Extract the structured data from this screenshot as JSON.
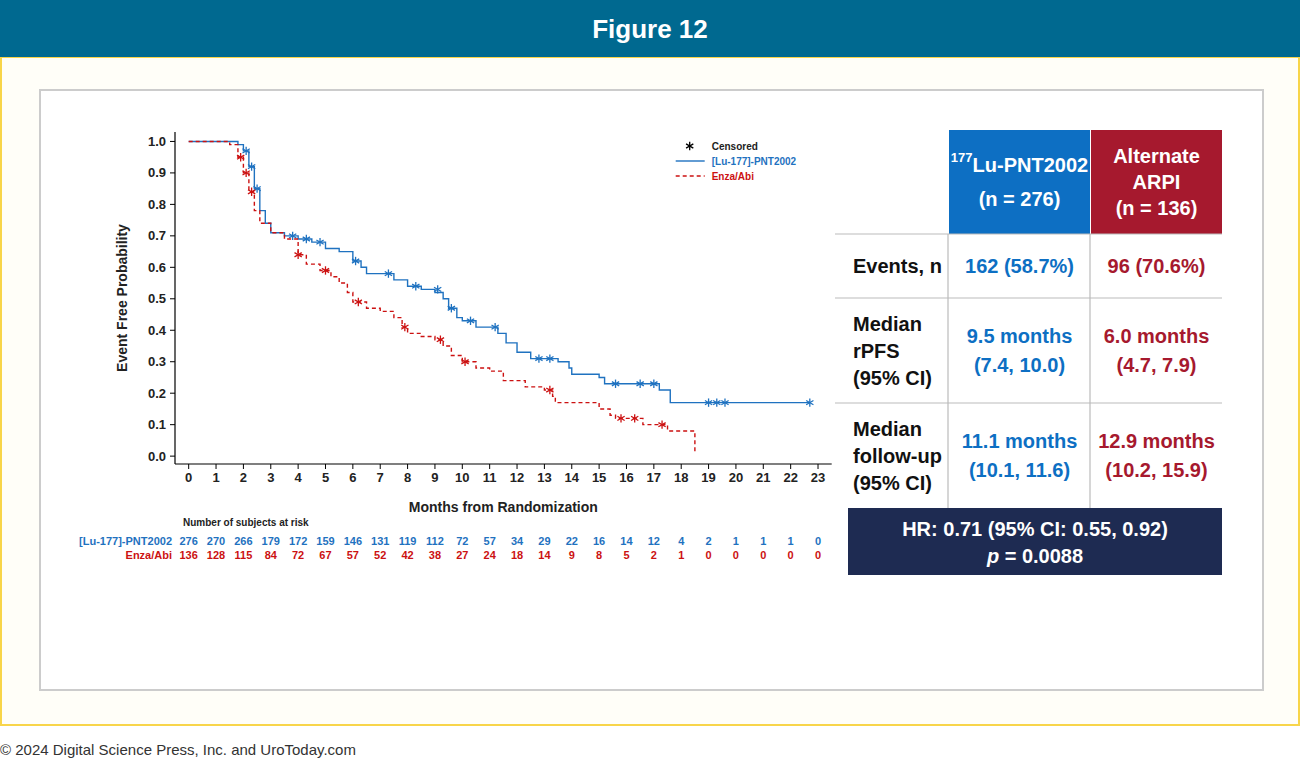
{
  "figure": {
    "title": "Figure 12",
    "copyright": "© 2024 Digital Science Press, Inc. and UroToday.com"
  },
  "chart_data": {
    "type": "step",
    "x_label": "Months from Randomization",
    "y_label": "Event Free Probability",
    "xlim": [
      -0.5,
      23.5
    ],
    "ylim": [
      -0.025,
      1.03
    ],
    "xticks": [
      0,
      1,
      2,
      3,
      4,
      5,
      6,
      7,
      8,
      9,
      10,
      11,
      12,
      13,
      14,
      15,
      16,
      17,
      18,
      19,
      20,
      21,
      22,
      23
    ],
    "yticks": [
      {
        "value": 0,
        "label": "0.0"
      },
      0.1,
      0.2,
      0.3,
      0.4,
      0.5,
      0.6,
      0.7,
      0.8,
      0.9,
      {
        "value": 1,
        "label": "1.0"
      }
    ],
    "grid": false,
    "legend": "upper right",
    "censored_label": "Censored",
    "series": [
      {
        "name": "[Lu-177]-PNT2002",
        "color": "#1f72c0",
        "line_style": "solid",
        "x": [
          0,
          1.5,
          1.8,
          2.0,
          2.2,
          2.4,
          2.6,
          2.8,
          3.0,
          3.5,
          4.0,
          4.5,
          5.0,
          5.5,
          6.0,
          6.3,
          6.5,
          7.5,
          8.0,
          8.5,
          9.0,
          9.3,
          9.5,
          9.8,
          10.0,
          10.5,
          11.3,
          11.6,
          12.0,
          12.5,
          13.5,
          13.9,
          14.0,
          15.0,
          15.2,
          17.2,
          17.6,
          22.7
        ],
        "values": [
          1.0,
          1.0,
          0.99,
          0.97,
          0.92,
          0.85,
          0.78,
          0.74,
          0.71,
          0.7,
          0.69,
          0.68,
          0.66,
          0.65,
          0.62,
          0.6,
          0.58,
          0.56,
          0.54,
          0.53,
          0.52,
          0.5,
          0.47,
          0.44,
          0.43,
          0.41,
          0.39,
          0.36,
          0.33,
          0.31,
          0.3,
          0.28,
          0.26,
          0.25,
          0.23,
          0.21,
          0.17,
          0.17
        ],
        "censored": {
          "marker": "asterisk",
          "x": [
            2.1,
            2.3,
            2.5,
            3.8,
            4.3,
            4.8,
            6.1,
            7.3,
            8.3,
            9.1,
            9.6,
            10.3,
            11.2,
            12.8,
            13.2,
            15.6,
            16.5,
            17.0,
            19.0,
            19.3,
            19.6,
            22.7
          ],
          "values": [
            0.97,
            0.92,
            0.85,
            0.7,
            0.69,
            0.68,
            0.62,
            0.58,
            0.54,
            0.53,
            0.47,
            0.43,
            0.41,
            0.31,
            0.31,
            0.23,
            0.23,
            0.23,
            0.17,
            0.17,
            0.17,
            0.17
          ]
        }
      },
      {
        "name": "Enza/Abi",
        "color": "#cc1111",
        "line_style": "dashed",
        "x": [
          0,
          1.5,
          1.8,
          2.0,
          2.2,
          2.4,
          2.6,
          3.0,
          3.5,
          4.0,
          4.3,
          4.8,
          5.2,
          5.5,
          5.8,
          6.0,
          6.5,
          7.0,
          7.5,
          7.8,
          8.0,
          8.5,
          9.0,
          9.3,
          9.6,
          10.0,
          10.5,
          11.0,
          11.5,
          12.3,
          13.0,
          13.3,
          13.4,
          15.0,
          15.4,
          15.6,
          16.6,
          17.5,
          18.5,
          18.5
        ],
        "values": [
          1.0,
          0.99,
          0.95,
          0.9,
          0.84,
          0.78,
          0.74,
          0.71,
          0.69,
          0.64,
          0.61,
          0.59,
          0.57,
          0.55,
          0.52,
          0.49,
          0.47,
          0.46,
          0.44,
          0.41,
          0.39,
          0.38,
          0.37,
          0.35,
          0.32,
          0.3,
          0.28,
          0.27,
          0.24,
          0.22,
          0.21,
          0.19,
          0.17,
          0.15,
          0.13,
          0.12,
          0.1,
          0.08,
          0.08,
          0.01
        ],
        "censored": {
          "marker": "asterisk",
          "x": [
            1.9,
            2.1,
            2.3,
            4.0,
            5.0,
            6.2,
            7.9,
            9.2,
            10.1,
            13.2,
            15.8,
            16.3,
            17.3
          ],
          "values": [
            0.95,
            0.9,
            0.84,
            0.64,
            0.59,
            0.49,
            0.41,
            0.37,
            0.3,
            0.21,
            0.12,
            0.12,
            0.1
          ]
        }
      }
    ],
    "at_risk": {
      "title": "Number of subjects at risk",
      "rows": [
        {
          "name": "[Lu-177]-PNT2002",
          "color": "#1f72c0",
          "values": [
            276,
            270,
            266,
            179,
            172,
            159,
            146,
            131,
            119,
            112,
            72,
            57,
            34,
            29,
            22,
            16,
            14,
            12,
            4,
            2,
            1,
            1,
            1,
            0
          ]
        },
        {
          "name": "Enza/Abi",
          "color": "#cc1111",
          "values": [
            136,
            128,
            115,
            84,
            72,
            67,
            57,
            52,
            42,
            38,
            27,
            24,
            18,
            14,
            9,
            8,
            5,
            2,
            1,
            0,
            0,
            0,
            0,
            0
          ]
        }
      ]
    }
  },
  "table": {
    "columns": [
      {
        "sup": "177",
        "lines": [
          "Lu-PNT2002"
        ],
        "n": "(n = 276)",
        "color": "#0d6fc3"
      },
      {
        "lines": [
          "Alternate",
          "ARPI"
        ],
        "n": "(n = 136)",
        "color": "#a6192e"
      }
    ],
    "rows": [
      {
        "label": [
          "Events, n"
        ],
        "cells": [
          [
            "162 (58.7%)"
          ],
          [
            "96 (70.6%)"
          ]
        ]
      },
      {
        "label": [
          "Median",
          "rPFS",
          "(95% CI)"
        ],
        "cells": [
          [
            "9.5 months",
            "(7.4, 10.0)"
          ],
          [
            "6.0 months",
            "(4.7, 7.9)"
          ]
        ]
      },
      {
        "label": [
          "Median",
          "follow-up",
          "(95% CI)"
        ],
        "cells": [
          [
            "11.1 months",
            "(10.1, 11.6)"
          ],
          [
            "12.9 months",
            "(10.2, 15.9)"
          ]
        ]
      }
    ],
    "footer": {
      "text": "HR: 0.71 (95% CI: 0.55, 0.92)",
      "p": {
        "italic": "p",
        "text": " = 0.0088"
      }
    }
  }
}
